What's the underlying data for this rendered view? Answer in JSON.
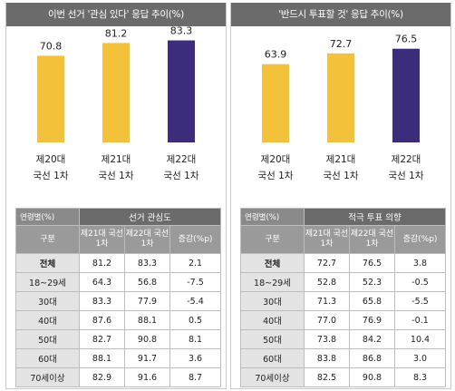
{
  "chart_data": [
    {
      "type": "bar",
      "title": "이번 선거 '관심 있다' 응답 추이(%)",
      "categories": [
        "제20대 국선 1차",
        "제21대 국선 1차",
        "제22대 국선 1차"
      ],
      "category_lines": [
        [
          "제20대",
          "국선 1차"
        ],
        [
          "제21대",
          "국선 1차"
        ],
        [
          "제22대",
          "국선 1차"
        ]
      ],
      "values": [
        70.8,
        81.2,
        83.3
      ],
      "colors": [
        "#f4c13b",
        "#f4c13b",
        "#3d2c7c"
      ],
      "ylim": [
        0,
        100
      ]
    },
    {
      "type": "bar",
      "title": "'반드시 투표할 것' 응답 추이(%)",
      "categories": [
        "제20대 국선 1차",
        "제21대 국선 1차",
        "제22대 국선 1차"
      ],
      "category_lines": [
        [
          "제20대",
          "국선 1차"
        ],
        [
          "제21대",
          "국선 1차"
        ],
        [
          "제22대",
          "국선 1차"
        ]
      ],
      "values": [
        63.9,
        72.7,
        76.5
      ],
      "colors": [
        "#f4c13b",
        "#f4c13b",
        "#3d2c7c"
      ],
      "ylim": [
        0,
        100
      ]
    }
  ],
  "tables": [
    {
      "corner": "연령별(%)",
      "group": "선거 관심도",
      "row_header": "구분",
      "col1": "제21대 국선 1차",
      "col2": "제22대 국선 1차",
      "col3": "증감(%p)",
      "rows": [
        {
          "label": "전체",
          "a": "81.2",
          "b": "83.3",
          "d": "2.1"
        },
        {
          "label": "18~29세",
          "a": "64.3",
          "b": "56.8",
          "d": "-7.5"
        },
        {
          "label": "30대",
          "a": "83.3",
          "b": "77.9",
          "d": "-5.4"
        },
        {
          "label": "40대",
          "a": "87.6",
          "b": "88.1",
          "d": "0.5"
        },
        {
          "label": "50대",
          "a": "82.7",
          "b": "90.8",
          "d": "8.1"
        },
        {
          "label": "60대",
          "a": "88.1",
          "b": "91.7",
          "d": "3.6"
        },
        {
          "label": "70세이상",
          "a": "82.9",
          "b": "91.6",
          "d": "8.7"
        }
      ]
    },
    {
      "corner": "연령별(%)",
      "group": "적극 투표 의향",
      "row_header": "구분",
      "col1": "제21대 국선 1차",
      "col2": "제22대 국선 1차",
      "col3": "증감(%p)",
      "rows": [
        {
          "label": "전체",
          "a": "72.7",
          "b": "76.5",
          "d": "3.8"
        },
        {
          "label": "18~29세",
          "a": "52.8",
          "b": "52.3",
          "d": "-0.5"
        },
        {
          "label": "30대",
          "a": "71.3",
          "b": "65.8",
          "d": "-5.5"
        },
        {
          "label": "40대",
          "a": "77.0",
          "b": "76.9",
          "d": "-0.1"
        },
        {
          "label": "50대",
          "a": "73.8",
          "b": "84.2",
          "d": "10.4"
        },
        {
          "label": "60대",
          "a": "83.8",
          "b": "86.8",
          "d": "3.0"
        },
        {
          "label": "70세이상",
          "a": "82.5",
          "b": "90.8",
          "d": "8.3"
        }
      ]
    }
  ]
}
